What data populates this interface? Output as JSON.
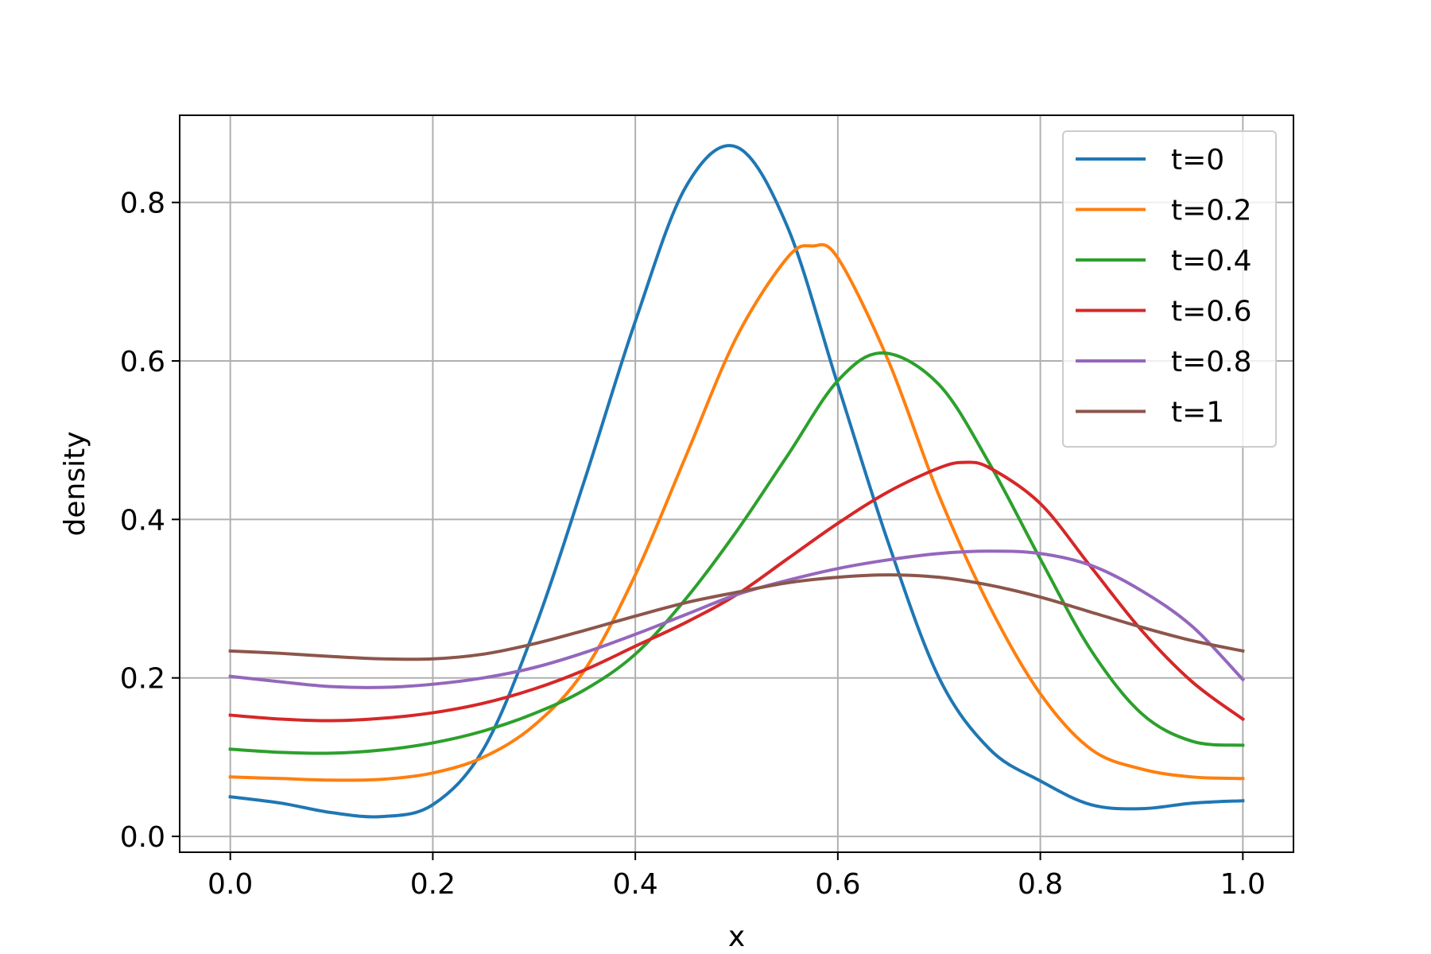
{
  "chart_data": {
    "type": "line",
    "title": "",
    "xlabel": "x",
    "ylabel": "density",
    "xlim": [
      -0.05,
      1.05
    ],
    "ylim": [
      -0.02,
      0.91
    ],
    "xticks": [
      0.0,
      0.2,
      0.4,
      0.6,
      0.8,
      1.0
    ],
    "xtick_labels": [
      "0.0",
      "0.2",
      "0.4",
      "0.6",
      "0.8",
      "1.0"
    ],
    "yticks": [
      0.0,
      0.2,
      0.4,
      0.6,
      0.8
    ],
    "ytick_labels": [
      "0.0",
      "0.2",
      "0.4",
      "0.6",
      "0.8"
    ],
    "grid": true,
    "legend_position": "top-right",
    "series": [
      {
        "name": "t=0",
        "color": "#1f77b4",
        "x": [
          0.0,
          0.05,
          0.1,
          0.15,
          0.2,
          0.25,
          0.3,
          0.35,
          0.4,
          0.45,
          0.5,
          0.55,
          0.6,
          0.65,
          0.7,
          0.75,
          0.8,
          0.85,
          0.9,
          0.95,
          1.0
        ],
        "y": [
          0.05,
          0.042,
          0.03,
          0.025,
          0.04,
          0.11,
          0.26,
          0.45,
          0.65,
          0.82,
          0.87,
          0.77,
          0.57,
          0.37,
          0.2,
          0.11,
          0.07,
          0.04,
          0.035,
          0.042,
          0.045
        ]
      },
      {
        "name": "t=0.2",
        "color": "#ff7f0e",
        "x": [
          0.0,
          0.05,
          0.1,
          0.15,
          0.2,
          0.25,
          0.3,
          0.35,
          0.4,
          0.45,
          0.5,
          0.55,
          0.575,
          0.6,
          0.65,
          0.7,
          0.75,
          0.8,
          0.85,
          0.9,
          0.95,
          1.0
        ],
        "y": [
          0.075,
          0.073,
          0.071,
          0.072,
          0.08,
          0.1,
          0.14,
          0.21,
          0.33,
          0.48,
          0.63,
          0.73,
          0.745,
          0.73,
          0.6,
          0.43,
          0.29,
          0.18,
          0.11,
          0.085,
          0.075,
          0.073
        ]
      },
      {
        "name": "t=0.4",
        "color": "#2ca02c",
        "x": [
          0.0,
          0.05,
          0.1,
          0.15,
          0.2,
          0.25,
          0.3,
          0.35,
          0.4,
          0.45,
          0.5,
          0.55,
          0.6,
          0.645,
          0.7,
          0.75,
          0.8,
          0.85,
          0.9,
          0.95,
          1.0
        ],
        "y": [
          0.11,
          0.106,
          0.105,
          0.109,
          0.118,
          0.133,
          0.155,
          0.185,
          0.23,
          0.3,
          0.385,
          0.48,
          0.575,
          0.61,
          0.57,
          0.47,
          0.35,
          0.235,
          0.155,
          0.12,
          0.115
        ]
      },
      {
        "name": "t=0.6",
        "color": "#d62728",
        "x": [
          0.0,
          0.05,
          0.1,
          0.15,
          0.2,
          0.25,
          0.3,
          0.35,
          0.4,
          0.45,
          0.5,
          0.55,
          0.6,
          0.65,
          0.7,
          0.725,
          0.75,
          0.8,
          0.85,
          0.9,
          0.95,
          1.0
        ],
        "y": [
          0.153,
          0.148,
          0.146,
          0.149,
          0.156,
          0.168,
          0.186,
          0.21,
          0.24,
          0.27,
          0.305,
          0.35,
          0.395,
          0.435,
          0.465,
          0.472,
          0.465,
          0.42,
          0.34,
          0.26,
          0.195,
          0.148
        ]
      },
      {
        "name": "t=0.8",
        "color": "#9467bd",
        "x": [
          0.0,
          0.05,
          0.1,
          0.15,
          0.2,
          0.25,
          0.3,
          0.35,
          0.4,
          0.45,
          0.5,
          0.55,
          0.6,
          0.65,
          0.7,
          0.75,
          0.8,
          0.85,
          0.9,
          0.95,
          1.0
        ],
        "y": [
          0.202,
          0.195,
          0.189,
          0.188,
          0.192,
          0.2,
          0.213,
          0.232,
          0.255,
          0.28,
          0.305,
          0.323,
          0.338,
          0.349,
          0.357,
          0.36,
          0.357,
          0.342,
          0.31,
          0.265,
          0.198
        ]
      },
      {
        "name": "t=1",
        "color": "#8c564b",
        "x": [
          0.0,
          0.05,
          0.1,
          0.15,
          0.2,
          0.25,
          0.3,
          0.35,
          0.4,
          0.45,
          0.5,
          0.55,
          0.6,
          0.65,
          0.7,
          0.75,
          0.8,
          0.85,
          0.9,
          0.95,
          1.0
        ],
        "y": [
          0.234,
          0.231,
          0.227,
          0.224,
          0.224,
          0.23,
          0.243,
          0.26,
          0.278,
          0.295,
          0.308,
          0.32,
          0.327,
          0.33,
          0.327,
          0.317,
          0.302,
          0.283,
          0.264,
          0.247,
          0.234
        ]
      }
    ]
  }
}
